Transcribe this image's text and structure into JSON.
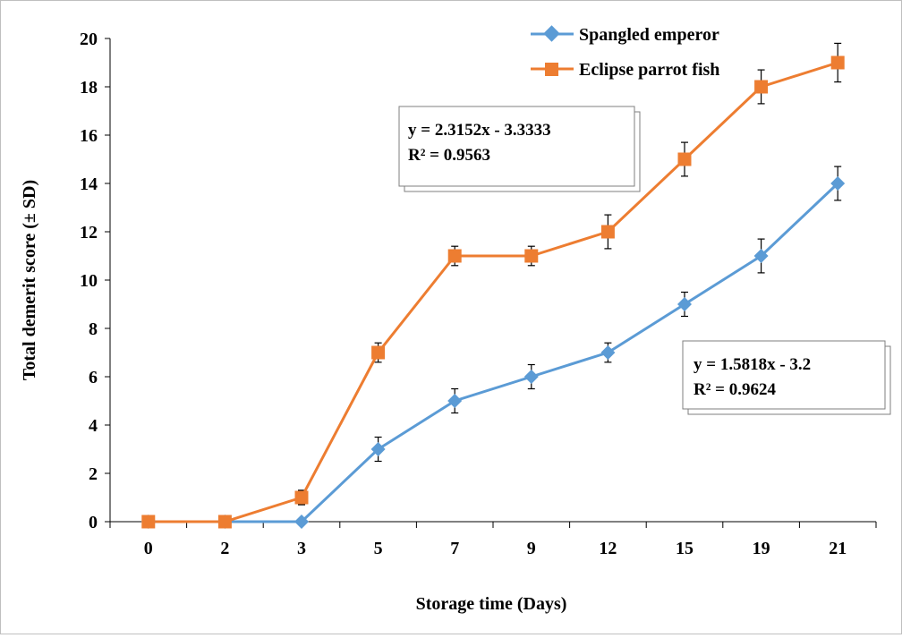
{
  "chart_data": {
    "type": "line",
    "title": "",
    "xlabel": "Storage time (Days)",
    "ylabel": "Total demerit score (± SD)",
    "categories": [
      "0",
      "2",
      "3",
      "5",
      "7",
      "9",
      "12",
      "15",
      "19",
      "21"
    ],
    "ylim": [
      0,
      20
    ],
    "yticks": [
      "0",
      "2",
      "4",
      "6",
      "8",
      "10",
      "12",
      "14",
      "16",
      "18",
      "20"
    ],
    "grid": false,
    "legend_position": "top-right",
    "series": [
      {
        "name": "Spangled emperor",
        "color": "#5B9BD5",
        "marker": "diamond",
        "values": [
          0,
          0,
          0,
          3,
          5,
          6,
          7,
          9,
          11,
          14
        ],
        "errors": [
          0,
          0,
          0,
          0.5,
          0.5,
          0.5,
          0.4,
          0.5,
          0.7,
          0.7
        ]
      },
      {
        "name": "Eclipse parrot fish",
        "color": "#ED7D31",
        "marker": "square",
        "values": [
          0,
          0,
          1,
          7,
          11,
          11,
          12,
          15,
          18,
          19
        ],
        "errors": [
          0,
          0,
          0.3,
          0.4,
          0.4,
          0.4,
          0.7,
          0.7,
          0.7,
          0.8
        ]
      }
    ],
    "annotations": [
      {
        "line1": "y = 2.3152x - 3.3333",
        "line2": "R² = 0.9563"
      },
      {
        "line1": "y = 1.5818x - 3.2",
        "line2": "R² = 0.9624"
      }
    ]
  }
}
